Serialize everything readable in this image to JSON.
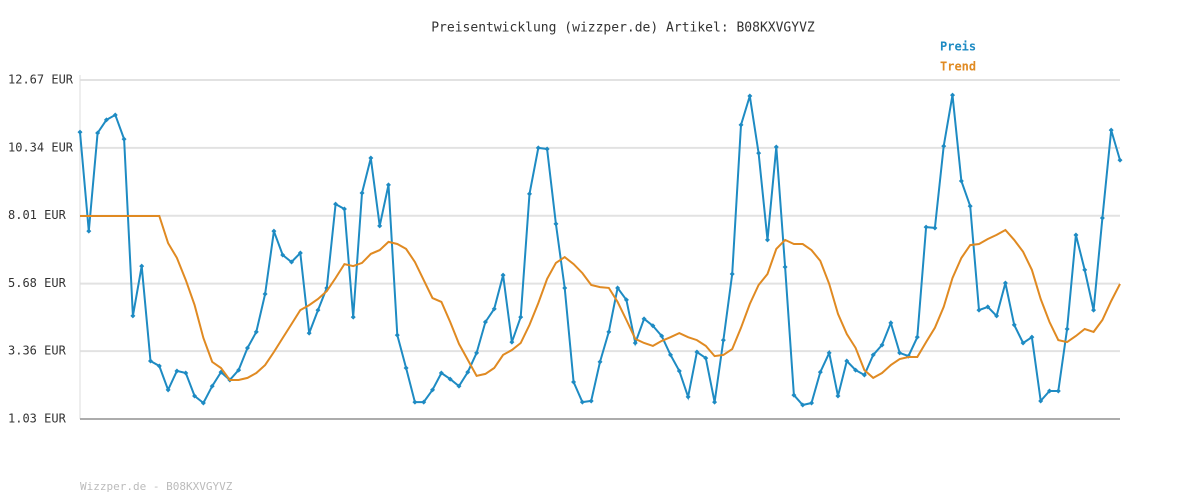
{
  "chart_data": {
    "type": "line",
    "title": "Preisentwicklung (wizzper.de) Artikel: B08KXVGYVZ",
    "footer": "Wizzper.de - B08KXVGYVZ",
    "ylim": [
      1.03,
      12.67
    ],
    "yticks": [
      {
        "value": 1.03,
        "label": "1.03 EUR"
      },
      {
        "value": 3.36,
        "label": "3.36 EUR"
      },
      {
        "value": 5.68,
        "label": "5.68 EUR"
      },
      {
        "value": 8.01,
        "label": "8.01 EUR"
      },
      {
        "value": 10.34,
        "label": "10.34 EUR"
      },
      {
        "value": 12.67,
        "label": "12.67 EUR"
      }
    ],
    "grid": true,
    "legend": "top-right",
    "series": [
      {
        "name": "Preis",
        "color": "#1e8bc3",
        "markers": true,
        "values": [
          10.88,
          7.48,
          10.85,
          11.3,
          11.47,
          10.64,
          4.57,
          6.28,
          3.02,
          2.85,
          2.03,
          2.68,
          2.61,
          1.82,
          1.58,
          2.16,
          2.64,
          2.37,
          2.71,
          3.47,
          4.02,
          5.32,
          7.48,
          6.66,
          6.42,
          6.73,
          3.98,
          4.77,
          5.53,
          8.41,
          8.24,
          4.53,
          8.79,
          9.99,
          7.66,
          9.07,
          3.91,
          2.78,
          1.61,
          1.61,
          2.03,
          2.61,
          2.4,
          2.16,
          2.64,
          3.3,
          4.36,
          4.81,
          5.97,
          3.67,
          4.53,
          8.76,
          10.34,
          10.3,
          7.73,
          5.53,
          2.3,
          1.61,
          1.65,
          2.99,
          4.02,
          5.53,
          5.12,
          3.64,
          4.47,
          4.23,
          3.88,
          3.23,
          2.68,
          1.79,
          3.33,
          3.12,
          1.61,
          3.74,
          6.01,
          11.13,
          12.12,
          10.16,
          7.18,
          10.37,
          6.25,
          1.85,
          1.51,
          1.58,
          2.64,
          3.3,
          1.82,
          3.02,
          2.71,
          2.54,
          3.23,
          3.57,
          4.33,
          3.3,
          3.19,
          3.84,
          7.62,
          7.59,
          10.4,
          12.15,
          9.2,
          8.34,
          4.77,
          4.88,
          4.57,
          5.7,
          4.26,
          3.64,
          3.84,
          1.65,
          1.99,
          1.99,
          4.12,
          7.35,
          6.15,
          4.77,
          7.93,
          10.95,
          9.92
        ]
      },
      {
        "name": "Trend",
        "color": "#e08a22",
        "markers": false,
        "values": [
          8.0,
          8.0,
          8.0,
          8.0,
          8.0,
          8.0,
          8.0,
          8.0,
          8.0,
          8.0,
          7.07,
          6.56,
          5.8,
          4.94,
          3.81,
          2.99,
          2.78,
          2.37,
          2.37,
          2.44,
          2.61,
          2.88,
          3.33,
          3.81,
          4.29,
          4.77,
          4.94,
          5.15,
          5.42,
          5.87,
          6.35,
          6.28,
          6.39,
          6.7,
          6.83,
          7.11,
          7.04,
          6.87,
          6.42,
          5.8,
          5.18,
          5.05,
          4.36,
          3.61,
          3.06,
          2.51,
          2.58,
          2.78,
          3.23,
          3.4,
          3.64,
          4.26,
          5.01,
          5.84,
          6.39,
          6.59,
          6.35,
          6.04,
          5.63,
          5.56,
          5.53,
          5.05,
          4.43,
          3.78,
          3.64,
          3.54,
          3.71,
          3.84,
          3.98,
          3.84,
          3.74,
          3.54,
          3.19,
          3.23,
          3.43,
          4.16,
          4.98,
          5.63,
          6.01,
          6.87,
          7.18,
          7.04,
          7.04,
          6.83,
          6.46,
          5.67,
          4.64,
          3.95,
          3.47,
          2.71,
          2.44,
          2.61,
          2.88,
          3.09,
          3.16,
          3.16,
          3.67,
          4.16,
          4.88,
          5.87,
          6.56,
          7.0,
          7.04,
          7.21,
          7.35,
          7.52,
          7.18,
          6.77,
          6.15,
          5.15,
          4.36,
          3.74,
          3.67,
          3.88,
          4.12,
          4.02,
          4.43,
          5.08,
          5.67
        ]
      }
    ]
  }
}
